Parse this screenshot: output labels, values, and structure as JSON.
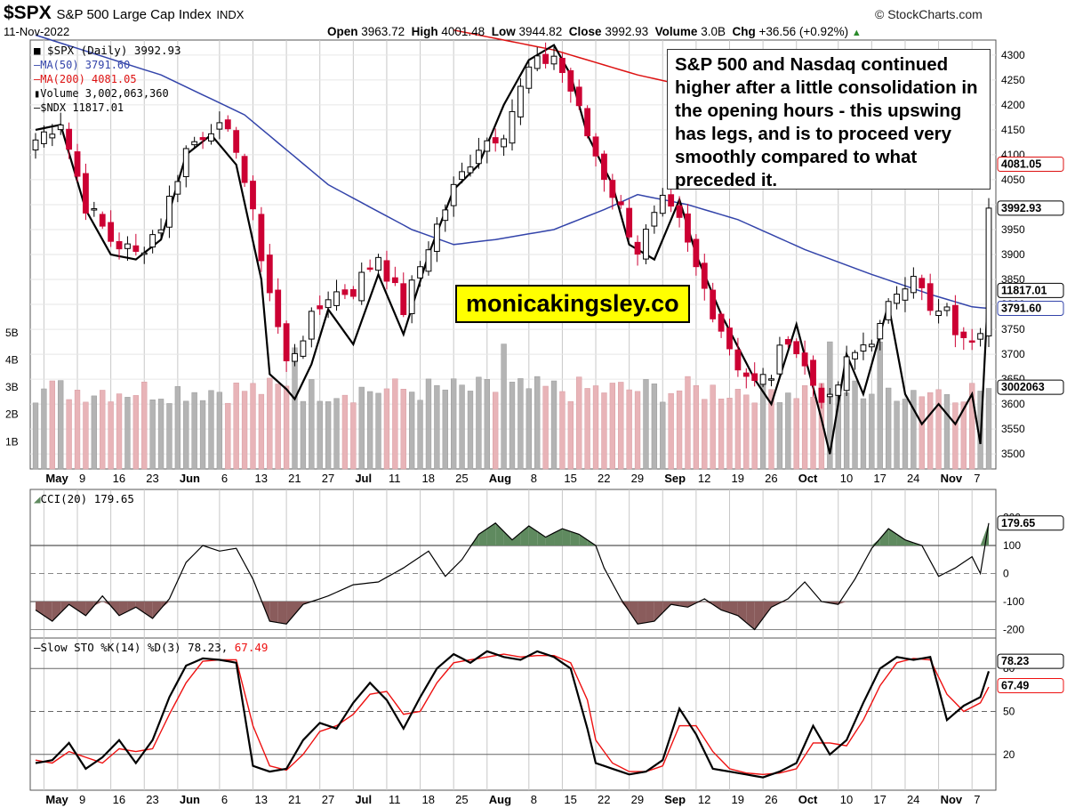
{
  "header": {
    "symbol": "$SPX",
    "name": "S&P 500 Large Cap Index",
    "exchange": "INDX",
    "date": "11-Nov-2022",
    "source": "© StockCharts.com",
    "ohlc": {
      "open_label": "Open",
      "open": "3963.72",
      "high_label": "High",
      "high": "4001.48",
      "low_label": "Low",
      "low": "3944.82",
      "close_label": "Close",
      "close": "3992.93",
      "volume_label": "Volume",
      "volume": "3.0B",
      "chg_label": "Chg",
      "chg": "+36.56 (+0.92%)"
    }
  },
  "legend": {
    "main": "■ $SPX (Daily) 3992.93",
    "ma50": "MA(50) 3791.60",
    "ma200": "MA(200) 4081.05",
    "volume": "Volume 3,002,063,360",
    "ndx": "$NDX 11817.01",
    "cci": "CCI(20) 179.65",
    "sto_prefix": "Slow STO %K(14) %D(3) 78.23,",
    "sto_d": "67.49"
  },
  "annotation": "S&P 500 and Nasdaq continued higher after a little consolidation in the opening hours - this upswing has legs, and is to proceed very smoothly compared to what preceded it.",
  "watermark": "monicakingsley.co",
  "colors": {
    "up": "#000000",
    "down": "#cc0033",
    "ma50": "#3344aa",
    "ma200": "#dd1111",
    "vol_up": "#b4b4b4",
    "vol_down": "#e8b4b8",
    "cci_pos": "#5f8a5f",
    "cci_neg": "#8a5c5c",
    "sto_k": "#000000",
    "sto_d": "#ee1111",
    "grid": "#c8c8c8"
  },
  "chart_data": [
    {
      "type": "candlestick",
      "title": "$SPX S&P 500 Large Cap Index INDX",
      "ylim": [
        3470,
        4330
      ],
      "yticks": [
        3500,
        3550,
        3600,
        3650,
        3700,
        3750,
        3800,
        3850,
        3900,
        3950,
        4000,
        4050,
        4100,
        4150,
        4200,
        4250,
        4300
      ],
      "xlabels": [
        "May",
        "9",
        "16",
        "23",
        "Jun",
        "6",
        "13",
        "21",
        "27",
        "Jul",
        "11",
        "18",
        "25",
        "Aug",
        "8",
        "15",
        "22",
        "29",
        "Sep",
        "12",
        "19",
        "26",
        "Oct",
        "10",
        "17",
        "24",
        "Nov",
        "7"
      ],
      "close_anchors": [
        [
          0,
          4130
        ],
        [
          3,
          4170
        ],
        [
          6,
          4000
        ],
        [
          9,
          3930
        ],
        [
          12,
          3900
        ],
        [
          15,
          3960
        ],
        [
          18,
          4110
        ],
        [
          21,
          4160
        ],
        [
          24,
          4120
        ],
        [
          27,
          3900
        ],
        [
          30,
          3680
        ],
        [
          32,
          3740
        ],
        [
          35,
          3820
        ],
        [
          38,
          3830
        ],
        [
          41,
          3900
        ],
        [
          44,
          3790
        ],
        [
          47,
          3920
        ],
        [
          50,
          4030
        ],
        [
          53,
          4120
        ],
        [
          56,
          4150
        ],
        [
          59,
          4270
        ],
        [
          62,
          4300
        ],
        [
          64,
          4230
        ],
        [
          66,
          4140
        ],
        [
          68,
          4060
        ],
        [
          70,
          3990
        ],
        [
          72,
          3910
        ],
        [
          75,
          4000
        ],
        [
          77,
          3960
        ],
        [
          79,
          3870
        ],
        [
          81,
          3790
        ],
        [
          84,
          3680
        ],
        [
          86,
          3640
        ],
        [
          88,
          3660
        ],
        [
          90,
          3740
        ],
        [
          93,
          3640
        ],
        [
          95,
          3600
        ],
        [
          97,
          3680
        ],
        [
          99,
          3720
        ],
        [
          101,
          3750
        ],
        [
          103,
          3830
        ],
        [
          105,
          3870
        ],
        [
          107,
          3780
        ],
        [
          109,
          3780
        ],
        [
          111,
          3720
        ],
        [
          113,
          3760
        ],
        [
          114,
          3993
        ]
      ],
      "current_close": "3992.93",
      "ma50_label": "3791.60",
      "ma200_label": "4081.05",
      "ndx_label": "11817.01",
      "ma50_anchors": [
        [
          0,
          4340
        ],
        [
          15,
          4260
        ],
        [
          25,
          4180
        ],
        [
          35,
          4040
        ],
        [
          45,
          3950
        ],
        [
          50,
          3920
        ],
        [
          55,
          3930
        ],
        [
          62,
          3950
        ],
        [
          68,
          3990
        ],
        [
          72,
          4020
        ],
        [
          78,
          4000
        ],
        [
          84,
          3970
        ],
        [
          92,
          3910
        ],
        [
          100,
          3860
        ],
        [
          107,
          3820
        ],
        [
          112,
          3795
        ],
        [
          114,
          3792
        ]
      ],
      "ma200_anchors": [
        [
          50,
          4350
        ],
        [
          62,
          4310
        ],
        [
          72,
          4260
        ],
        [
          76,
          4245
        ],
        [
          78,
          4240
        ]
      ],
      "ndx_anchors": [
        [
          0,
          4150
        ],
        [
          3,
          4160
        ],
        [
          6,
          3990
        ],
        [
          9,
          3900
        ],
        [
          12,
          3890
        ],
        [
          15,
          3930
        ],
        [
          18,
          4100
        ],
        [
          21,
          4140
        ],
        [
          24,
          4080
        ],
        [
          27,
          3850
        ],
        [
          28,
          3660
        ],
        [
          30,
          3630
        ],
        [
          31,
          3610
        ],
        [
          33,
          3680
        ],
        [
          35,
          3790
        ],
        [
          38,
          3720
        ],
        [
          41,
          3860
        ],
        [
          44,
          3740
        ],
        [
          47,
          3900
        ],
        [
          50,
          4030
        ],
        [
          53,
          4080
        ],
        [
          56,
          4200
        ],
        [
          59,
          4290
        ],
        [
          62,
          4320
        ],
        [
          64,
          4260
        ],
        [
          66,
          4140
        ],
        [
          69,
          4040
        ],
        [
          71,
          3920
        ],
        [
          74,
          3890
        ],
        [
          77,
          4010
        ],
        [
          79,
          3900
        ],
        [
          82,
          3780
        ],
        [
          86,
          3650
        ],
        [
          88,
          3600
        ],
        [
          91,
          3760
        ],
        [
          94,
          3570
        ],
        [
          95,
          3500
        ],
        [
          97,
          3700
        ],
        [
          99,
          3620
        ],
        [
          102,
          3800
        ],
        [
          104,
          3620
        ],
        [
          106,
          3560
        ],
        [
          108,
          3600
        ],
        [
          110,
          3560
        ],
        [
          112,
          3620
        ],
        [
          113,
          3520
        ],
        [
          114,
          3850
        ]
      ],
      "volume_billions": {
        "yticks": [
          "1B",
          "2B",
          "3B",
          "4B",
          "5B"
        ],
        "current": "3002063"
      }
    },
    {
      "type": "line",
      "title": "CCI(20) 179.65",
      "ylim": [
        -230,
        300
      ],
      "yticks": [
        -200,
        -100,
        0,
        100,
        200
      ],
      "current": "179.65",
      "anchors": [
        [
          0,
          -130
        ],
        [
          2,
          -170
        ],
        [
          4,
          -110
        ],
        [
          6,
          -150
        ],
        [
          8,
          -80
        ],
        [
          10,
          -150
        ],
        [
          12,
          -120
        ],
        [
          14,
          -160
        ],
        [
          16,
          -90
        ],
        [
          18,
          40
        ],
        [
          20,
          100
        ],
        [
          22,
          80
        ],
        [
          24,
          90
        ],
        [
          26,
          -20
        ],
        [
          28,
          -170
        ],
        [
          30,
          -180
        ],
        [
          32,
          -110
        ],
        [
          35,
          -80
        ],
        [
          38,
          -40
        ],
        [
          41,
          -30
        ],
        [
          44,
          20
        ],
        [
          47,
          80
        ],
        [
          49,
          -10
        ],
        [
          51,
          50
        ],
        [
          53,
          140
        ],
        [
          55,
          180
        ],
        [
          57,
          120
        ],
        [
          59,
          170
        ],
        [
          61,
          130
        ],
        [
          63,
          160
        ],
        [
          65,
          140
        ],
        [
          67,
          100
        ],
        [
          68,
          20
        ],
        [
          70,
          -90
        ],
        [
          72,
          -180
        ],
        [
          74,
          -170
        ],
        [
          76,
          -110
        ],
        [
          78,
          -120
        ],
        [
          80,
          -90
        ],
        [
          82,
          -130
        ],
        [
          84,
          -150
        ],
        [
          86,
          -200
        ],
        [
          88,
          -120
        ],
        [
          90,
          -90
        ],
        [
          92,
          -30
        ],
        [
          94,
          -100
        ],
        [
          96,
          -110
        ],
        [
          98,
          -20
        ],
        [
          100,
          90
        ],
        [
          102,
          160
        ],
        [
          104,
          120
        ],
        [
          106,
          100
        ],
        [
          108,
          -10
        ],
        [
          110,
          20
        ],
        [
          112,
          60
        ],
        [
          113,
          0
        ],
        [
          114,
          180
        ]
      ]
    },
    {
      "type": "line",
      "title": "Slow STO %K(14) %D(3)",
      "ylim": [
        0,
        100
      ],
      "yticks": [
        20,
        50,
        80
      ],
      "k_current": "78.23",
      "d_current": "67.49",
      "k_anchors": [
        [
          0,
          14
        ],
        [
          2,
          16
        ],
        [
          4,
          28
        ],
        [
          6,
          10
        ],
        [
          8,
          18
        ],
        [
          10,
          30
        ],
        [
          12,
          14
        ],
        [
          14,
          30
        ],
        [
          16,
          60
        ],
        [
          18,
          82
        ],
        [
          20,
          87
        ],
        [
          22,
          86
        ],
        [
          24,
          84
        ],
        [
          26,
          12
        ],
        [
          28,
          8
        ],
        [
          30,
          10
        ],
        [
          32,
          30
        ],
        [
          34,
          42
        ],
        [
          36,
          38
        ],
        [
          38,
          56
        ],
        [
          40,
          70
        ],
        [
          42,
          58
        ],
        [
          44,
          38
        ],
        [
          46,
          60
        ],
        [
          48,
          80
        ],
        [
          50,
          90
        ],
        [
          52,
          84
        ],
        [
          54,
          92
        ],
        [
          56,
          88
        ],
        [
          58,
          86
        ],
        [
          60,
          92
        ],
        [
          62,
          88
        ],
        [
          64,
          80
        ],
        [
          66,
          38
        ],
        [
          67,
          14
        ],
        [
          69,
          10
        ],
        [
          71,
          6
        ],
        [
          73,
          8
        ],
        [
          75,
          16
        ],
        [
          77,
          52
        ],
        [
          79,
          34
        ],
        [
          81,
          10
        ],
        [
          83,
          8
        ],
        [
          85,
          6
        ],
        [
          87,
          4
        ],
        [
          89,
          8
        ],
        [
          91,
          14
        ],
        [
          93,
          40
        ],
        [
          95,
          20
        ],
        [
          97,
          30
        ],
        [
          99,
          56
        ],
        [
          101,
          80
        ],
        [
          103,
          88
        ],
        [
          105,
          86
        ],
        [
          107,
          88
        ],
        [
          109,
          44
        ],
        [
          111,
          54
        ],
        [
          113,
          60
        ],
        [
          114,
          78
        ]
      ],
      "d_anchors": [
        [
          0,
          16
        ],
        [
          2,
          14
        ],
        [
          4,
          22
        ],
        [
          6,
          18
        ],
        [
          8,
          14
        ],
        [
          10,
          24
        ],
        [
          12,
          22
        ],
        [
          14,
          24
        ],
        [
          16,
          48
        ],
        [
          18,
          70
        ],
        [
          20,
          85
        ],
        [
          22,
          86
        ],
        [
          24,
          86
        ],
        [
          26,
          40
        ],
        [
          28,
          12
        ],
        [
          30,
          9
        ],
        [
          32,
          20
        ],
        [
          34,
          36
        ],
        [
          36,
          40
        ],
        [
          38,
          48
        ],
        [
          40,
          62
        ],
        [
          42,
          64
        ],
        [
          44,
          48
        ],
        [
          46,
          50
        ],
        [
          48,
          70
        ],
        [
          50,
          84
        ],
        [
          52,
          86
        ],
        [
          54,
          88
        ],
        [
          56,
          90
        ],
        [
          58,
          88
        ],
        [
          60,
          89
        ],
        [
          62,
          89
        ],
        [
          64,
          84
        ],
        [
          66,
          58
        ],
        [
          67,
          30
        ],
        [
          69,
          14
        ],
        [
          71,
          8
        ],
        [
          73,
          8
        ],
        [
          75,
          12
        ],
        [
          77,
          40
        ],
        [
          79,
          40
        ],
        [
          81,
          22
        ],
        [
          83,
          10
        ],
        [
          85,
          7
        ],
        [
          87,
          6
        ],
        [
          89,
          7
        ],
        [
          91,
          10
        ],
        [
          93,
          28
        ],
        [
          95,
          28
        ],
        [
          97,
          26
        ],
        [
          99,
          44
        ],
        [
          101,
          68
        ],
        [
          103,
          84
        ],
        [
          105,
          87
        ],
        [
          107,
          86
        ],
        [
          109,
          62
        ],
        [
          111,
          50
        ],
        [
          113,
          56
        ],
        [
          114,
          67
        ]
      ]
    }
  ]
}
